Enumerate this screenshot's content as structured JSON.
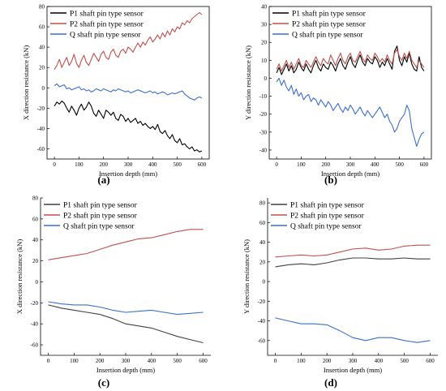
{
  "chart_data": [
    {
      "type": "line",
      "panel": "a",
      "caption": "(a)",
      "xlabel": "Insertion depth (mm)",
      "ylabel": "X direction resistance (kN)",
      "xlim": [
        -30,
        630
      ],
      "ylim": [
        -70,
        80
      ],
      "xticks": [
        0,
        100,
        200,
        300,
        400,
        500,
        600
      ],
      "yticks": [
        -60,
        -40,
        -20,
        0,
        20,
        40,
        60,
        80
      ],
      "legend_position": "top-left",
      "plot_border": "full",
      "grid": false,
      "series": [
        {
          "name": "P1 shaft pin type sensor",
          "color": "#000000",
          "x": [
            0,
            10,
            20,
            30,
            40,
            50,
            60,
            70,
            80,
            90,
            100,
            110,
            120,
            130,
            140,
            150,
            160,
            170,
            180,
            190,
            200,
            210,
            220,
            230,
            240,
            250,
            260,
            270,
            280,
            290,
            300,
            310,
            320,
            330,
            340,
            350,
            360,
            370,
            380,
            390,
            400,
            410,
            420,
            430,
            440,
            450,
            460,
            470,
            480,
            490,
            500,
            510,
            520,
            530,
            540,
            550,
            560,
            570,
            580,
            590,
            600
          ],
          "y": [
            -18,
            -14,
            -16,
            -13,
            -15,
            -20,
            -24,
            -18,
            -22,
            -27,
            -20,
            -16,
            -22,
            -19,
            -14,
            -18,
            -25,
            -28,
            -22,
            -26,
            -30,
            -22,
            -24,
            -27,
            -24,
            -30,
            -32,
            -26,
            -28,
            -33,
            -30,
            -34,
            -32,
            -30,
            -35,
            -33,
            -37,
            -35,
            -38,
            -40,
            -38,
            -41,
            -36,
            -43,
            -45,
            -42,
            -47,
            -50,
            -46,
            -52,
            -54,
            -50,
            -56,
            -55,
            -58,
            -60,
            -58,
            -62,
            -61,
            -63,
            -62
          ]
        },
        {
          "name": "P2 shaft pin type sensor",
          "color": "#c0504d",
          "x": [
            0,
            10,
            20,
            30,
            40,
            50,
            60,
            70,
            80,
            90,
            100,
            110,
            120,
            130,
            140,
            150,
            160,
            170,
            180,
            190,
            200,
            210,
            220,
            230,
            240,
            250,
            260,
            270,
            280,
            290,
            300,
            310,
            320,
            330,
            340,
            350,
            360,
            370,
            380,
            390,
            400,
            410,
            420,
            430,
            440,
            450,
            460,
            470,
            480,
            490,
            500,
            510,
            520,
            530,
            540,
            550,
            560,
            570,
            580,
            590,
            600
          ],
          "y": [
            18,
            22,
            28,
            20,
            25,
            30,
            22,
            26,
            33,
            24,
            20,
            27,
            32,
            25,
            22,
            28,
            34,
            30,
            26,
            33,
            36,
            30,
            28,
            35,
            38,
            32,
            30,
            36,
            38,
            34,
            40,
            38,
            35,
            40,
            44,
            40,
            45,
            42,
            47,
            50,
            45,
            48,
            52,
            48,
            54,
            50,
            56,
            52,
            58,
            55,
            60,
            58,
            64,
            62,
            66,
            64,
            68,
            70,
            72,
            74,
            72
          ]
        },
        {
          "name": "Q shaft pin type sensor",
          "color": "#3a6fcc",
          "x": [
            0,
            10,
            20,
            30,
            40,
            50,
            60,
            70,
            80,
            90,
            100,
            110,
            120,
            130,
            140,
            150,
            160,
            170,
            180,
            190,
            200,
            210,
            220,
            230,
            240,
            250,
            260,
            270,
            280,
            290,
            300,
            310,
            320,
            330,
            340,
            350,
            360,
            370,
            380,
            390,
            400,
            410,
            420,
            430,
            440,
            450,
            460,
            470,
            480,
            490,
            500,
            510,
            520,
            530,
            540,
            550,
            560,
            570,
            580,
            590,
            600
          ],
          "y": [
            2,
            4,
            1,
            2,
            3,
            -1,
            0,
            -2,
            -1,
            0,
            1,
            -2,
            -1,
            -3,
            -2,
            -4,
            -3,
            -1,
            -2,
            -3,
            -1,
            -2,
            -3,
            -4,
            -2,
            -3,
            -1,
            -2,
            -3,
            -4,
            -3,
            -5,
            -4,
            -3,
            -2,
            -3,
            -4,
            -5,
            -4,
            -3,
            -5,
            -4,
            -6,
            -5,
            -4,
            -5,
            -7,
            -6,
            -5,
            -6,
            -5,
            -4,
            -3,
            -6,
            -8,
            -10,
            -11,
            -12,
            -10,
            -9,
            -10
          ]
        }
      ]
    },
    {
      "type": "line",
      "panel": "b",
      "caption": "(b)",
      "xlabel": "Insertion depth (mm)",
      "ylabel": "Y direction resistance (kN)",
      "xlim": [
        -30,
        630
      ],
      "ylim": [
        -45,
        40
      ],
      "xticks": [
        0,
        100,
        200,
        300,
        400,
        500,
        600
      ],
      "yticks": [
        -40,
        -30,
        -20,
        -10,
        0,
        10,
        20,
        30,
        40
      ],
      "legend_position": "top-left",
      "plot_border": "full",
      "grid": false,
      "series": [
        {
          "name": "P1 shaft pin type sensor",
          "color": "#000000",
          "x": [
            0,
            10,
            20,
            30,
            40,
            50,
            60,
            70,
            80,
            90,
            100,
            110,
            120,
            130,
            140,
            150,
            160,
            170,
            180,
            190,
            200,
            210,
            220,
            230,
            240,
            250,
            260,
            270,
            280,
            290,
            300,
            310,
            320,
            330,
            340,
            350,
            360,
            370,
            380,
            390,
            400,
            410,
            420,
            430,
            440,
            450,
            460,
            470,
            480,
            490,
            500,
            510,
            520,
            530,
            540,
            550,
            560,
            570,
            580,
            590,
            600
          ],
          "y": [
            3,
            6,
            2,
            5,
            8,
            4,
            7,
            3,
            5,
            9,
            6,
            4,
            8,
            5,
            3,
            7,
            10,
            6,
            4,
            8,
            6,
            5,
            9,
            7,
            4,
            8,
            11,
            7,
            5,
            9,
            12,
            8,
            6,
            10,
            13,
            9,
            7,
            11,
            9,
            8,
            12,
            10,
            6,
            9,
            7,
            11,
            8,
            5,
            15,
            18,
            10,
            7,
            12,
            9,
            14,
            8,
            5,
            4,
            12,
            6,
            4
          ]
        },
        {
          "name": "P2 shaft pin type sensor",
          "color": "#c0504d",
          "x": [
            0,
            10,
            20,
            30,
            40,
            50,
            60,
            70,
            80,
            90,
            100,
            110,
            120,
            130,
            140,
            150,
            160,
            170,
            180,
            190,
            200,
            210,
            220,
            230,
            240,
            250,
            260,
            270,
            280,
            290,
            300,
            310,
            320,
            330,
            340,
            350,
            360,
            370,
            380,
            390,
            400,
            410,
            420,
            430,
            440,
            450,
            460,
            470,
            480,
            490,
            500,
            510,
            520,
            530,
            540,
            550,
            560,
            570,
            580,
            590,
            600
          ],
          "y": [
            5,
            8,
            4,
            7,
            10,
            6,
            9,
            5,
            8,
            11,
            7,
            6,
            10,
            8,
            6,
            9,
            12,
            9,
            7,
            11,
            9,
            8,
            13,
            10,
            7,
            11,
            14,
            10,
            8,
            12,
            14,
            10,
            9,
            12,
            15,
            11,
            9,
            13,
            11,
            10,
            14,
            12,
            9,
            11,
            9,
            13,
            10,
            8,
            14,
            16,
            12,
            10,
            14,
            11,
            15,
            10,
            8,
            6,
            10,
            8,
            6
          ]
        },
        {
          "name": "Q shaft pin type sensor",
          "color": "#3a6fcc",
          "x": [
            0,
            10,
            20,
            30,
            40,
            50,
            60,
            70,
            80,
            90,
            100,
            110,
            120,
            130,
            140,
            150,
            160,
            170,
            180,
            190,
            200,
            210,
            220,
            230,
            240,
            250,
            260,
            270,
            280,
            290,
            300,
            310,
            320,
            330,
            340,
            350,
            360,
            370,
            380,
            390,
            400,
            410,
            420,
            430,
            440,
            450,
            460,
            470,
            480,
            490,
            500,
            510,
            520,
            530,
            540,
            550,
            560,
            570,
            580,
            590,
            600
          ],
          "y": [
            -2,
            0,
            -4,
            -1,
            -5,
            -7,
            -4,
            -9,
            -6,
            -10,
            -8,
            -12,
            -10,
            -9,
            -13,
            -11,
            -12,
            -15,
            -12,
            -14,
            -16,
            -13,
            -15,
            -18,
            -16,
            -14,
            -17,
            -19,
            -16,
            -18,
            -15,
            -17,
            -20,
            -18,
            -16,
            -19,
            -21,
            -18,
            -20,
            -22,
            -20,
            -18,
            -16,
            -19,
            -22,
            -20,
            -24,
            -26,
            -30,
            -28,
            -24,
            -22,
            -20,
            -15,
            -18,
            -28,
            -33,
            -38,
            -34,
            -31,
            -30
          ]
        }
      ]
    },
    {
      "type": "line",
      "panel": "c",
      "caption": "(c)",
      "xlabel": "Insertion depth (mm)",
      "ylabel": "X direction resistance (kN)",
      "xlim": [
        -30,
        630
      ],
      "ylim": [
        -70,
        80
      ],
      "xticks": [
        0,
        100,
        200,
        300,
        400,
        500,
        600
      ],
      "yticks": [
        -60,
        -40,
        -20,
        0,
        20,
        40,
        60,
        80
      ],
      "legend_position": "top-left",
      "plot_border": "left-bottom",
      "grid": false,
      "series": [
        {
          "name": "P1 shaft pin type sensor",
          "color": "#404040",
          "x": [
            0,
            50,
            100,
            150,
            200,
            250,
            300,
            350,
            400,
            450,
            500,
            550,
            600
          ],
          "y": [
            -22,
            -25,
            -27,
            -29,
            -31,
            -35,
            -40,
            -42,
            -44,
            -48,
            -52,
            -55,
            -58
          ]
        },
        {
          "name": "P2 shaft pin type sensor",
          "color": "#c0504d",
          "x": [
            0,
            50,
            100,
            150,
            200,
            250,
            300,
            350,
            400,
            450,
            500,
            550,
            600
          ],
          "y": [
            21,
            23,
            25,
            27,
            31,
            35,
            38,
            41,
            42,
            45,
            48,
            50,
            50
          ]
        },
        {
          "name": "Q shaft pin type sensor",
          "color": "#3a6fcc",
          "x": [
            0,
            50,
            100,
            150,
            200,
            250,
            300,
            350,
            400,
            450,
            500,
            550,
            600
          ],
          "y": [
            -19,
            -21,
            -22,
            -22,
            -24,
            -27,
            -29,
            -28,
            -27,
            -29,
            -31,
            -30,
            -29
          ]
        }
      ]
    },
    {
      "type": "line",
      "panel": "d",
      "caption": "(d)",
      "xlabel": "Insertion depth (mm)",
      "ylabel": "Y direction resistance (kN)",
      "xlim": [
        -30,
        630
      ],
      "ylim": [
        -75,
        85
      ],
      "xticks": [
        0,
        100,
        200,
        300,
        400,
        500,
        600
      ],
      "yticks": [
        -60,
        -40,
        -20,
        0,
        20,
        40,
        60,
        80
      ],
      "legend_position": "top-left",
      "plot_border": "left-bottom",
      "grid": false,
      "series": [
        {
          "name": "P1 shaft pin type sensor",
          "color": "#404040",
          "x": [
            0,
            50,
            100,
            150,
            200,
            250,
            300,
            350,
            400,
            450,
            500,
            550,
            600
          ],
          "y": [
            15,
            17,
            18,
            17,
            19,
            22,
            24,
            24,
            23,
            23,
            24,
            23,
            23
          ]
        },
        {
          "name": "P2 shaft pin type sensor",
          "color": "#c0504d",
          "x": [
            0,
            50,
            100,
            150,
            200,
            250,
            300,
            350,
            400,
            450,
            500,
            550,
            600
          ],
          "y": [
            25,
            26,
            27,
            26,
            27,
            30,
            33,
            34,
            32,
            33,
            36,
            37,
            37
          ]
        },
        {
          "name": "Q shaft pin type sensor",
          "color": "#3a6fcc",
          "x": [
            0,
            50,
            100,
            150,
            200,
            250,
            300,
            350,
            400,
            450,
            500,
            550,
            600
          ],
          "y": [
            -37,
            -40,
            -43,
            -43,
            -44,
            -50,
            -57,
            -60,
            -57,
            -57,
            -60,
            -62,
            -60
          ]
        }
      ]
    }
  ]
}
